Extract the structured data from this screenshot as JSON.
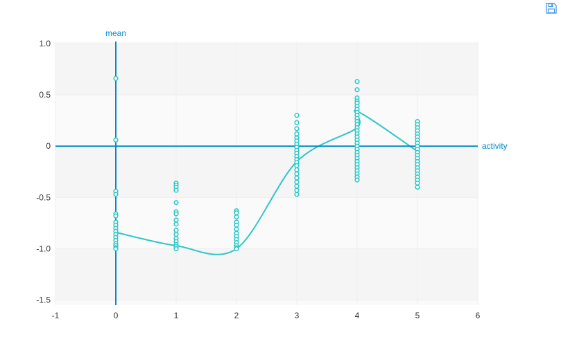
{
  "toolbar": {
    "save_icon": "save-as-image-icon"
  },
  "colors": {
    "series": "#2ec7c9",
    "axis": "#008acd",
    "band_dark": "#f5f5f5",
    "band_light": "#fafafa",
    "grid": "#eeeeee",
    "text": "#333333"
  },
  "chart_data": {
    "type": "scatter",
    "xlabel": "activity",
    "ylabel": "mean",
    "xlim": [
      -1,
      6
    ],
    "ylim": [
      -1.55,
      1.02
    ],
    "x_ticks": [
      -1,
      0,
      1,
      2,
      3,
      4,
      5,
      6
    ],
    "x_tick_labels": [
      "-1",
      "0",
      "1",
      "2",
      "3",
      "4",
      "5",
      "6"
    ],
    "y_ticks": [
      1.0,
      0.5,
      0,
      -0.5,
      -1.0,
      -1.5
    ],
    "y_tick_labels": [
      "1.0",
      "0.5",
      "0",
      "-0.5",
      "-1.0",
      "-1.5"
    ],
    "grid": true,
    "series": [
      {
        "kind": "points",
        "points": [
          [
            0,
            0.66
          ],
          [
            0,
            0.06
          ],
          [
            0,
            -0.44
          ],
          [
            0,
            -0.47
          ],
          [
            0,
            -0.66
          ],
          [
            0,
            -0.68
          ],
          [
            0,
            -0.74
          ],
          [
            0,
            -0.77
          ],
          [
            0,
            -0.8
          ],
          [
            0,
            -0.83
          ],
          [
            0,
            -0.86
          ],
          [
            0,
            -0.89
          ],
          [
            0,
            -0.92
          ],
          [
            0,
            -0.95
          ],
          [
            0,
            -0.97
          ],
          [
            0,
            -0.99
          ],
          [
            0,
            -1.0
          ],
          [
            1,
            -0.36
          ],
          [
            1,
            -0.38
          ],
          [
            1,
            -0.4
          ],
          [
            1,
            -0.43
          ],
          [
            1,
            -0.55
          ],
          [
            1,
            -0.64
          ],
          [
            1,
            -0.66
          ],
          [
            1,
            -0.72
          ],
          [
            1,
            -0.76
          ],
          [
            1,
            -0.82
          ],
          [
            1,
            -0.86
          ],
          [
            1,
            -0.9
          ],
          [
            1,
            -0.93
          ],
          [
            1,
            -0.96
          ],
          [
            1,
            -0.98
          ],
          [
            1,
            -1.0
          ],
          [
            2,
            -0.63
          ],
          [
            2,
            -0.65
          ],
          [
            2,
            -0.69
          ],
          [
            2,
            -0.74
          ],
          [
            2,
            -0.77
          ],
          [
            2,
            -0.81
          ],
          [
            2,
            -0.85
          ],
          [
            2,
            -0.88
          ],
          [
            2,
            -0.91
          ],
          [
            2,
            -0.94
          ],
          [
            2,
            -0.97
          ],
          [
            2,
            -0.99
          ],
          [
            2,
            -1.0
          ],
          [
            3,
            0.3
          ],
          [
            3,
            0.23
          ],
          [
            3,
            0.17
          ],
          [
            3,
            0.12
          ],
          [
            3,
            0.08
          ],
          [
            3,
            0.05
          ],
          [
            3,
            0.02
          ],
          [
            3,
            -0.01
          ],
          [
            3,
            -0.04
          ],
          [
            3,
            -0.07
          ],
          [
            3,
            -0.1
          ],
          [
            3,
            -0.13
          ],
          [
            3,
            -0.16
          ],
          [
            3,
            -0.19
          ],
          [
            3,
            -0.23
          ],
          [
            3,
            -0.27
          ],
          [
            3,
            -0.31
          ],
          [
            3,
            -0.35
          ],
          [
            3,
            -0.39
          ],
          [
            3,
            -0.43
          ],
          [
            3,
            -0.47
          ],
          [
            4,
            0.63
          ],
          [
            4,
            0.55
          ],
          [
            4,
            0.47
          ],
          [
            4,
            0.44
          ],
          [
            4,
            0.42
          ],
          [
            4,
            0.39
          ],
          [
            4,
            0.36
          ],
          [
            4,
            0.33
          ],
          [
            4,
            0.3
          ],
          [
            4,
            0.27
          ],
          [
            4,
            0.24
          ],
          [
            4,
            0.21
          ],
          [
            4,
            0.18
          ],
          [
            4,
            0.15
          ],
          [
            4,
            0.12
          ],
          [
            4,
            0.09
          ],
          [
            4,
            0.06
          ],
          [
            4,
            0.03
          ],
          [
            4,
            0.0
          ],
          [
            4,
            -0.03
          ],
          [
            4,
            -0.06
          ],
          [
            4,
            -0.09
          ],
          [
            4,
            -0.12
          ],
          [
            4,
            -0.15
          ],
          [
            4,
            -0.18
          ],
          [
            4,
            -0.21
          ],
          [
            4,
            -0.24
          ],
          [
            4,
            -0.27
          ],
          [
            4,
            -0.3
          ],
          [
            4,
            -0.33
          ],
          [
            5,
            0.24
          ],
          [
            5,
            0.21
          ],
          [
            5,
            0.18
          ],
          [
            5,
            0.15
          ],
          [
            5,
            0.12
          ],
          [
            5,
            0.09
          ],
          [
            5,
            0.06
          ],
          [
            5,
            0.03
          ],
          [
            5,
            0.0
          ],
          [
            5,
            -0.03
          ],
          [
            5,
            -0.06
          ],
          [
            5,
            -0.09
          ],
          [
            5,
            -0.12
          ],
          [
            5,
            -0.15
          ],
          [
            5,
            -0.18
          ],
          [
            5,
            -0.21
          ],
          [
            5,
            -0.24
          ],
          [
            5,
            -0.27
          ],
          [
            5,
            -0.3
          ],
          [
            5,
            -0.33
          ],
          [
            5,
            -0.36
          ],
          [
            5,
            -0.4
          ]
        ]
      },
      {
        "kind": "smooth-line",
        "points": [
          [
            0,
            -0.84
          ],
          [
            1,
            -0.97
          ],
          [
            2,
            -1.0
          ],
          [
            3,
            -0.15
          ],
          [
            4,
            0.18
          ],
          [
            4,
            0.34
          ],
          [
            5,
            -0.05
          ]
        ]
      }
    ]
  }
}
